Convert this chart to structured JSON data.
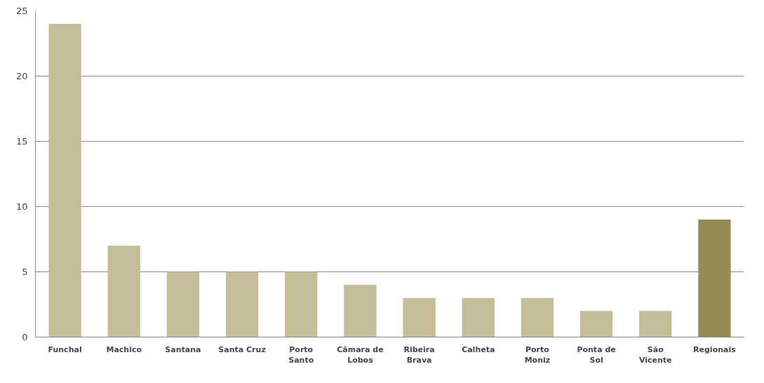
{
  "chart_data": {
    "type": "bar",
    "categories": [
      "Funchal",
      "Machico",
      "Santana",
      "Santa Cruz",
      "Porto Santo",
      "Câmara de Lobos",
      "Ribeira Brava",
      "Calheta",
      "Porto Moniz",
      "Ponta de Sol",
      "São Vicente",
      "Regionais"
    ],
    "values": [
      24,
      7,
      5,
      5,
      5,
      4,
      3,
      3,
      3,
      2,
      2,
      9
    ],
    "colors": [
      "#c4bd97",
      "#c4bd97",
      "#c4bd97",
      "#c4bd97",
      "#c4bd97",
      "#c4bd97",
      "#c4bd97",
      "#c4bd97",
      "#c4bd97",
      "#c4bd97",
      "#c4bd97",
      "#948a54"
    ],
    "ylim": [
      0,
      25
    ],
    "yticks": [
      0,
      5,
      10,
      15,
      20,
      25
    ],
    "grid": "y"
  }
}
